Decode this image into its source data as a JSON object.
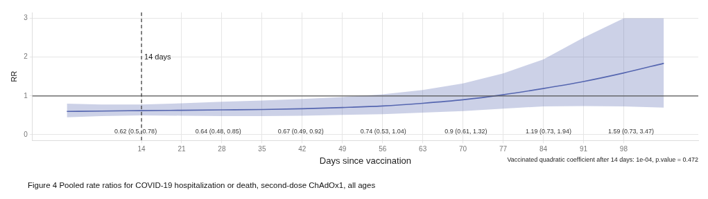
{
  "chart_data": {
    "type": "line",
    "title": "Figure 4 Pooled rate ratios for COVID-19 hospitalization or death, second-dose ChAdOx1, all ages",
    "xlabel": "Days since vaccination",
    "ylabel": "RR",
    "x": [
      1,
      7,
      14,
      21,
      28,
      35,
      42,
      49,
      56,
      63,
      70,
      77,
      84,
      91,
      98,
      105
    ],
    "series": [
      {
        "color": "#5566b0",
        "values": [
          0.6,
          0.61,
          0.62,
          0.63,
          0.64,
          0.65,
          0.67,
          0.7,
          0.74,
          0.81,
          0.9,
          1.03,
          1.19,
          1.37,
          1.59,
          1.84
        ],
        "lower": [
          0.45,
          0.48,
          0.5,
          0.49,
          0.48,
          0.48,
          0.49,
          0.51,
          0.53,
          0.57,
          0.61,
          0.67,
          0.73,
          0.74,
          0.73,
          0.7
        ],
        "upper": [
          0.8,
          0.78,
          0.78,
          0.81,
          0.85,
          0.88,
          0.92,
          0.97,
          1.04,
          1.15,
          1.32,
          1.58,
          1.94,
          2.5,
          3,
          3
        ]
      }
    ],
    "xlim": [
      -5,
      111
    ],
    "ylim": [
      -0.15,
      3.15
    ],
    "xticks": [
      14,
      21,
      28,
      35,
      42,
      49,
      56,
      63,
      70,
      77,
      84,
      91,
      98
    ],
    "yticks": [
      0,
      1,
      2,
      3
    ],
    "grid": true,
    "legend": false,
    "marker": "none",
    "line_style": "solid",
    "ref_lines": [
      {
        "axis": "y",
        "value": 1,
        "color": "#555555",
        "line_style": "solid"
      },
      {
        "axis": "x",
        "value": 14,
        "label": "14 days",
        "color": "#444444",
        "line_style": "dashed"
      }
    ],
    "annotations": [
      "0.62 (0.5, 0.78)",
      "0.64 (0.48, 0.85)",
      "0.67 (0.49, 0.92)",
      "0.74 (0.53, 1.04)",
      "0.9 (0.61, 1.32)",
      "1.19 (0.73, 1.94)",
      "1.59 (0.73, 3.47)",
      "Vaccinated quadratic coefficient after 14 days: 1e-04, p.value = 0.472"
    ]
  }
}
